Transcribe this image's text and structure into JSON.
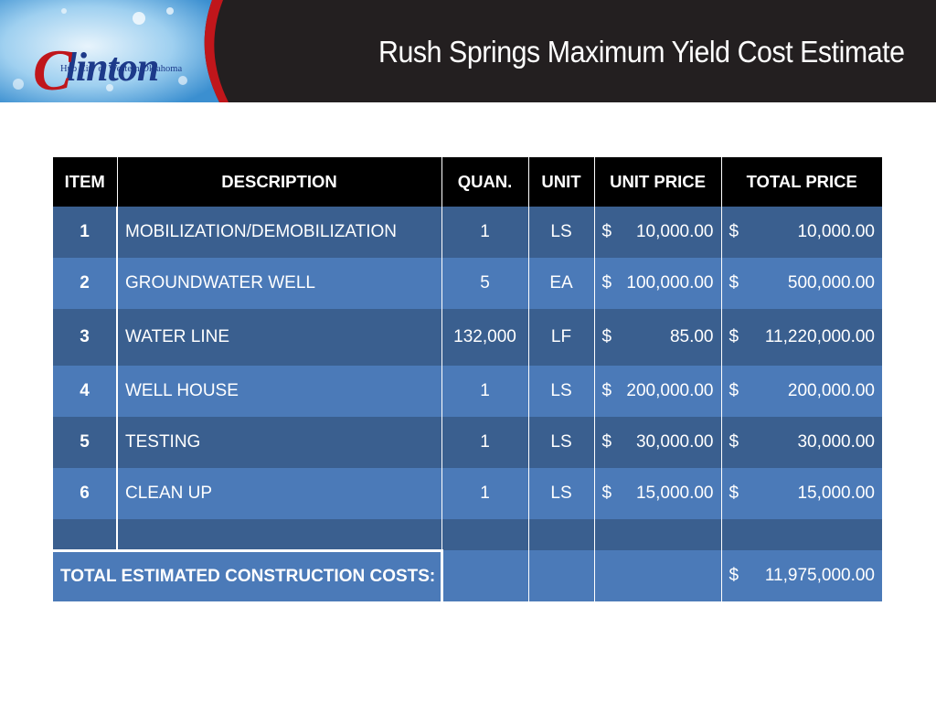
{
  "header": {
    "title": "Rush Springs Maximum Yield Cost Estimate",
    "logo": {
      "initial": "C",
      "name": "linton",
      "tagline": "Hub City of Western Oklahoma"
    }
  },
  "table": {
    "columns": [
      "ITEM",
      "DESCRIPTION",
      "QUAN.",
      "UNIT",
      "UNIT PRICE",
      "TOTAL PRICE"
    ],
    "rows": [
      {
        "item": "1",
        "description": "MOBILIZATION/DEMOBILIZATION",
        "quantity": "1",
        "unit": "LS",
        "unit_price_symbol": "$",
        "unit_price": "10,000.00",
        "total_symbol": "$",
        "total": "10,000.00"
      },
      {
        "item": "2",
        "description": "GROUNDWATER WELL",
        "quantity": "5",
        "unit": "EA",
        "unit_price_symbol": "$",
        "unit_price": "100,000.00",
        "total_symbol": "$",
        "total": "500,000.00"
      },
      {
        "item": "3",
        "description": "WATER LINE",
        "quantity": "132,000",
        "unit": "LF",
        "unit_price_symbol": "$",
        "unit_price": "85.00",
        "total_symbol": "$",
        "total": "11,220,000.00"
      },
      {
        "item": "4",
        "description": "WELL HOUSE",
        "quantity": "1",
        "unit": "LS",
        "unit_price_symbol": "$",
        "unit_price": "200,000.00",
        "total_symbol": "$",
        "total": "200,000.00"
      },
      {
        "item": "5",
        "description": "TESTING",
        "quantity": "1",
        "unit": "LS",
        "unit_price_symbol": "$",
        "unit_price": "30,000.00",
        "total_symbol": "$",
        "total": "30,000.00"
      },
      {
        "item": "6",
        "description": "CLEAN UP",
        "quantity": "1",
        "unit": "LS",
        "unit_price_symbol": "$",
        "unit_price": "15,000.00",
        "total_symbol": "$",
        "total": "15,000.00"
      }
    ],
    "total_row": {
      "label": "TOTAL ESTIMATED CONSTRUCTION COSTS:",
      "symbol": "$",
      "amount": "11,975,000.00"
    }
  },
  "colors": {
    "header_bg": "#231f20",
    "row_dark": "#3a5f8f",
    "row_light": "#4b7ab8",
    "table_header": "#000000",
    "logo_red": "#c0161b",
    "logo_blue": "#1d3a8a"
  }
}
